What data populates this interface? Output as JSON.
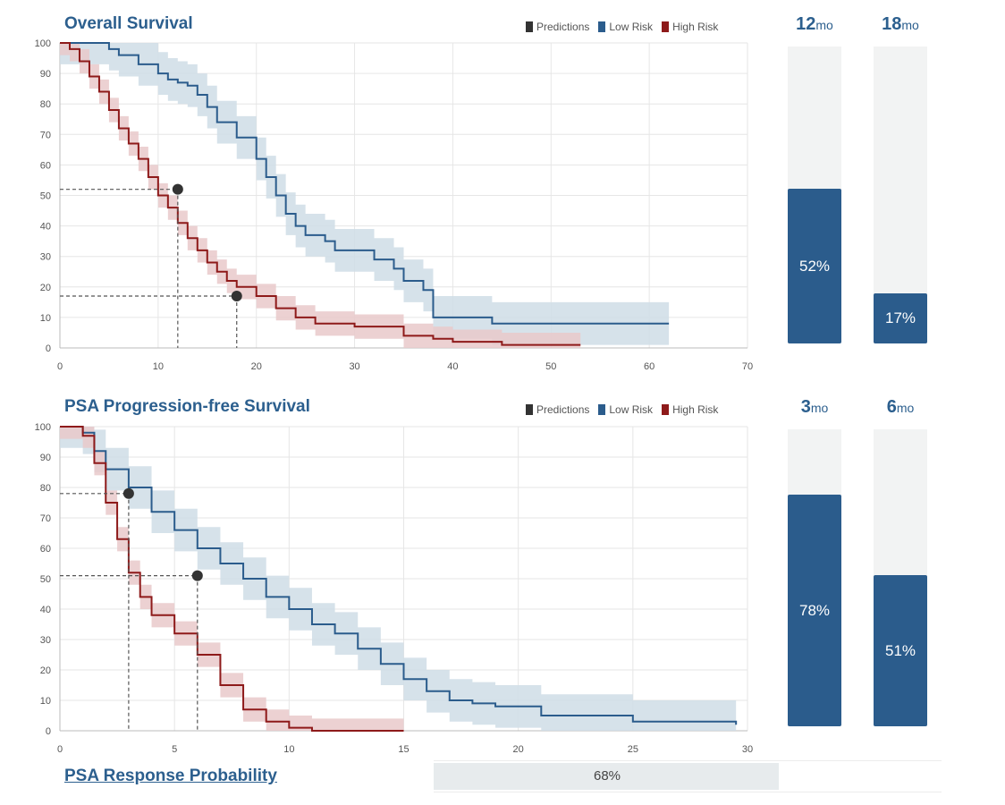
{
  "colors": {
    "low": "#2b5c8c",
    "lowBand": "#cfdde6",
    "high": "#8e1a1a",
    "highBand": "#e9c9ca",
    "pred": "#333333"
  },
  "legend": {
    "predictions": "Predictions",
    "low_risk": "Low Risk",
    "high_risk": "High Risk"
  },
  "charts": [
    {
      "title": "Overall Survival",
      "bars": [
        {
          "head": "12",
          "unit": "mo",
          "value": 52,
          "label": "52%"
        },
        {
          "head": "18",
          "unit": "mo",
          "value": 17,
          "label": "17%"
        }
      ]
    },
    {
      "title": "PSA Progression-free Survival",
      "bars": [
        {
          "head": "3",
          "unit": "mo",
          "value": 78,
          "label": "78%"
        },
        {
          "head": "6",
          "unit": "mo",
          "value": 51,
          "label": "51%"
        }
      ]
    }
  ],
  "response": {
    "title": "PSA Response Probability",
    "value": 68,
    "label": "68%"
  },
  "chart_data": [
    {
      "type": "line",
      "title": "Overall Survival",
      "xlim": [
        0,
        70
      ],
      "ylim": [
        0,
        100
      ],
      "xticks": [
        0,
        10,
        20,
        30,
        40,
        50,
        60,
        70
      ],
      "yticks": [
        0,
        10,
        20,
        30,
        40,
        50,
        60,
        70,
        80,
        90,
        100
      ],
      "grid": true,
      "legend_position": "top-right",
      "series": [
        {
          "name": "Low Risk",
          "x": [
            0,
            3,
            5,
            6,
            8,
            10,
            11,
            12,
            13,
            14,
            15,
            16,
            18,
            20,
            21,
            22,
            23,
            24,
            25,
            27,
            28,
            30,
            32,
            34,
            35,
            37,
            38,
            44,
            62
          ],
          "y": [
            100,
            100,
            98,
            96,
            93,
            90,
            88,
            87,
            86,
            83,
            79,
            74,
            69,
            62,
            56,
            50,
            44,
            40,
            37,
            35,
            32,
            32,
            29,
            26,
            22,
            19,
            10,
            8,
            8
          ],
          "band_half_width": 7
        },
        {
          "name": "High Risk",
          "x": [
            0,
            1,
            2,
            3,
            4,
            5,
            6,
            7,
            8,
            9,
            10,
            11,
            12,
            13,
            14,
            15,
            16,
            17,
            18,
            20,
            22,
            24,
            26,
            30,
            35,
            38,
            40,
            45,
            53
          ],
          "y": [
            100,
            98,
            94,
            89,
            84,
            78,
            72,
            67,
            62,
            56,
            50,
            46,
            41,
            36,
            32,
            28,
            25,
            22,
            20,
            17,
            13,
            10,
            8,
            7,
            4,
            3,
            2,
            1,
            1
          ],
          "band_half_width": 4
        }
      ],
      "predictions": [
        {
          "x": 12,
          "y": 52
        },
        {
          "x": 18,
          "y": 17
        }
      ]
    },
    {
      "type": "line",
      "title": "PSA Progression-free Survival",
      "xlim": [
        0,
        30
      ],
      "ylim": [
        0,
        100
      ],
      "xticks": [
        0,
        5,
        10,
        15,
        20,
        25,
        30
      ],
      "yticks": [
        0,
        10,
        20,
        30,
        40,
        50,
        60,
        70,
        80,
        90,
        100
      ],
      "grid": true,
      "legend_position": "top-right",
      "series": [
        {
          "name": "Low Risk",
          "x": [
            0,
            1,
            1.5,
            2,
            3,
            4,
            5,
            6,
            7,
            8,
            9,
            10,
            11,
            12,
            13,
            14,
            15,
            16,
            17,
            18,
            19,
            21,
            25,
            29.5
          ],
          "y": [
            100,
            98,
            92,
            86,
            80,
            72,
            66,
            60,
            55,
            50,
            44,
            40,
            35,
            32,
            27,
            22,
            17,
            13,
            10,
            9,
            8,
            5,
            3,
            2
          ],
          "band_half_width": 7
        },
        {
          "name": "High Risk",
          "x": [
            0,
            1,
            1.5,
            2,
            2.5,
            3,
            3.5,
            4,
            5,
            6,
            7,
            8,
            9,
            10,
            11,
            13,
            15
          ],
          "y": [
            100,
            97,
            88,
            75,
            63,
            52,
            44,
            38,
            32,
            25,
            15,
            7,
            3,
            1,
            0,
            0,
            0
          ],
          "band_half_width": 4
        }
      ],
      "predictions": [
        {
          "x": 3,
          "y": 78
        },
        {
          "x": 6,
          "y": 51
        }
      ]
    }
  ]
}
